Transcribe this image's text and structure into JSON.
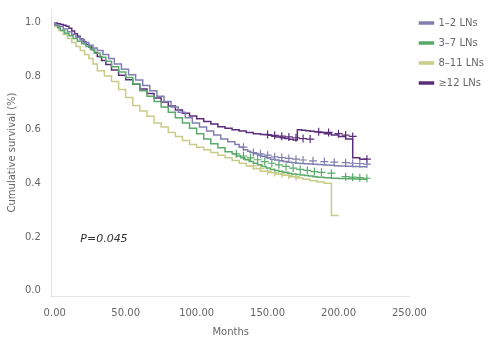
{
  "chart_data": {
    "type": "line",
    "xlabel": "Months",
    "ylabel": "Cumulative survival (%)",
    "xlim": [
      -2,
      250
    ],
    "ylim": [
      -0.02,
      1.05
    ],
    "xticks": [
      {
        "value": 0,
        "label": "0.00"
      },
      {
        "value": 50,
        "label": "50.00"
      },
      {
        "value": 100,
        "label": "100.00"
      },
      {
        "value": 150,
        "label": "150.00"
      },
      {
        "value": 200,
        "label": "200.00"
      },
      {
        "value": 250,
        "label": "250.00"
      }
    ],
    "yticks": [
      {
        "value": 0,
        "label": "0.0"
      },
      0.2,
      0.4,
      0.6,
      0.8,
      {
        "value": 1,
        "label": "1.0"
      }
    ],
    "grid": false,
    "legend": "right",
    "annotations": [
      {
        "text": "P=0.045",
        "x": 18,
        "y": 0.17
      }
    ],
    "series": [
      {
        "name": "1–2 LNs",
        "color": "#8080b0",
        "line_style": "step",
        "marker": "plus",
        "x": [
          0,
          3,
          6,
          9,
          12,
          15,
          18,
          21,
          24,
          27,
          30,
          34,
          38,
          42,
          47,
          52,
          57,
          62,
          67,
          72,
          77,
          82,
          87,
          92,
          97,
          102,
          107,
          112,
          117,
          122,
          127,
          130,
          133,
          136,
          138,
          140,
          143,
          146,
          149,
          152,
          155,
          158,
          161,
          164,
          167,
          170,
          173,
          176,
          179,
          182,
          185,
          188,
          191,
          194,
          197,
          200,
          205,
          210,
          215,
          220
        ],
        "values": [
          1.0,
          0.99,
          0.985,
          0.975,
          0.965,
          0.955,
          0.945,
          0.935,
          0.925,
          0.915,
          0.905,
          0.895,
          0.88,
          0.865,
          0.845,
          0.825,
          0.805,
          0.785,
          0.765,
          0.745,
          0.725,
          0.705,
          0.685,
          0.665,
          0.645,
          0.625,
          0.61,
          0.595,
          0.58,
          0.565,
          0.555,
          0.545,
          0.535,
          0.525,
          0.52,
          0.515,
          0.51,
          0.505,
          0.5,
          0.495,
          0.49,
          0.487,
          0.484,
          0.481,
          0.479,
          0.477,
          0.475,
          0.474,
          0.473,
          0.472,
          0.471,
          0.47,
          0.469,
          0.468,
          0.467,
          0.466,
          0.465,
          0.464,
          0.463,
          0.462
        ],
        "censor_x": [
          133,
          140,
          145,
          150,
          155,
          160,
          165,
          170,
          175,
          182,
          190,
          197,
          205,
          210,
          215,
          220
        ],
        "censor_values": [
          0.535,
          0.515,
          0.51,
          0.505,
          0.499,
          0.496,
          0.493,
          0.49,
          0.487,
          0.484,
          0.481,
          0.479,
          0.477,
          0.475,
          0.474,
          0.472
        ]
      },
      {
        "name": "3–7 LNs",
        "color": "#5aaa6a",
        "line_style": "step",
        "marker": "plus",
        "x": [
          0,
          2,
          4,
          7,
          10,
          13,
          16,
          19,
          22,
          25,
          28,
          32,
          36,
          40,
          45,
          50,
          55,
          60,
          65,
          70,
          75,
          80,
          85,
          90,
          95,
          100,
          105,
          110,
          115,
          120,
          125,
          128,
          131,
          134,
          137,
          140,
          143,
          146,
          149,
          152,
          155,
          158,
          161,
          164,
          167,
          170,
          173,
          176,
          179,
          182,
          185,
          190,
          195,
          200,
          205,
          210,
          215,
          220
        ],
        "values": [
          1.0,
          0.99,
          0.98,
          0.97,
          0.96,
          0.95,
          0.94,
          0.93,
          0.92,
          0.91,
          0.9,
          0.885,
          0.87,
          0.855,
          0.835,
          0.815,
          0.795,
          0.77,
          0.745,
          0.725,
          0.705,
          0.685,
          0.665,
          0.645,
          0.625,
          0.605,
          0.585,
          0.565,
          0.548,
          0.533,
          0.518,
          0.51,
          0.502,
          0.495,
          0.488,
          0.481,
          0.475,
          0.469,
          0.463,
          0.457,
          0.452,
          0.448,
          0.444,
          0.441,
          0.438,
          0.435,
          0.433,
          0.431,
          0.429,
          0.427,
          0.425,
          0.423,
          0.421,
          0.419,
          0.418,
          0.417,
          0.416,
          0.415
        ],
        "censor_x": [
          128,
          133,
          138,
          143,
          148,
          153,
          158,
          163,
          168,
          173,
          178,
          183,
          188,
          195,
          205,
          210,
          215,
          220
        ],
        "censor_values": [
          0.51,
          0.502,
          0.495,
          0.488,
          0.481,
          0.475,
          0.469,
          0.463,
          0.457,
          0.452,
          0.448,
          0.444,
          0.441,
          0.438,
          0.425,
          0.423,
          0.421,
          0.419
        ]
      },
      {
        "name": "8–11 LNs",
        "color": "#c8cc88",
        "line_style": "step",
        "marker": "plus",
        "x": [
          0,
          3,
          6,
          9,
          12,
          15,
          18,
          21,
          24,
          27,
          30,
          35,
          40,
          45,
          50,
          55,
          60,
          65,
          70,
          75,
          80,
          85,
          90,
          95,
          100,
          105,
          110,
          115,
          120,
          125,
          130,
          135,
          140,
          145,
          150,
          155,
          160,
          165,
          170,
          175,
          180,
          185,
          190,
          195,
          200
        ],
        "values": [
          1.0,
          0.985,
          0.97,
          0.955,
          0.94,
          0.925,
          0.91,
          0.895,
          0.88,
          0.865,
          0.845,
          0.82,
          0.8,
          0.78,
          0.75,
          0.72,
          0.69,
          0.67,
          0.65,
          0.625,
          0.61,
          0.59,
          0.575,
          0.56,
          0.545,
          0.535,
          0.525,
          0.515,
          0.505,
          0.495,
          0.485,
          0.475,
          0.465,
          0.455,
          0.445,
          0.44,
          0.435,
          0.43,
          0.425,
          0.42,
          0.415,
          0.41,
          0.405,
          0.4,
          0.28
        ],
        "censor_x": [
          140,
          145,
          150,
          155,
          160,
          165,
          170
        ],
        "censor_values": [
          0.465,
          0.455,
          0.445,
          0.44,
          0.435,
          0.43,
          0.425
        ]
      },
      {
        "name": "≥12 LNs",
        "color": "#5c2d7a",
        "line_style": "step",
        "marker": "plus",
        "x": [
          0,
          2,
          4,
          6,
          8,
          10,
          12,
          14,
          16,
          18,
          20,
          22,
          24,
          26,
          28,
          30,
          33,
          36,
          40,
          45,
          50,
          55,
          60,
          65,
          70,
          75,
          80,
          85,
          90,
          95,
          100,
          105,
          110,
          115,
          120,
          125,
          130,
          135,
          140,
          145,
          150,
          153,
          156,
          159,
          162,
          165,
          168,
          171,
          174,
          177,
          180,
          183,
          186,
          190,
          195,
          200,
          205,
          210,
          215,
          220
        ],
        "values": [
          1.0,
          0.998,
          0.995,
          0.992,
          0.989,
          0.986,
          0.978,
          0.968,
          0.958,
          0.948,
          0.938,
          0.928,
          0.918,
          0.908,
          0.898,
          0.888,
          0.873,
          0.858,
          0.843,
          0.823,
          0.803,
          0.786,
          0.769,
          0.752,
          0.735,
          0.718,
          0.703,
          0.688,
          0.673,
          0.661,
          0.651,
          0.641,
          0.631,
          0.621,
          0.611,
          0.605,
          0.6,
          0.595,
          0.59,
          0.585,
          0.582,
          0.579,
          0.576,
          0.573,
          0.57,
          0.567,
          0.564,
          0.562,
          0.6,
          0.598,
          0.596,
          0.594,
          0.592,
          0.59,
          0.585,
          0.58,
          0.575,
          0.565,
          0.495,
          0.49
        ],
        "censor_x": [
          150,
          155,
          160,
          165,
          170,
          175,
          180,
          186,
          193,
          200,
          205,
          210,
          220
        ],
        "censor_values": [
          0.582,
          0.579,
          0.576,
          0.573,
          0.57,
          0.567,
          0.565,
          0.592,
          0.59,
          0.585,
          0.58,
          0.575,
          0.49
        ]
      }
    ]
  }
}
